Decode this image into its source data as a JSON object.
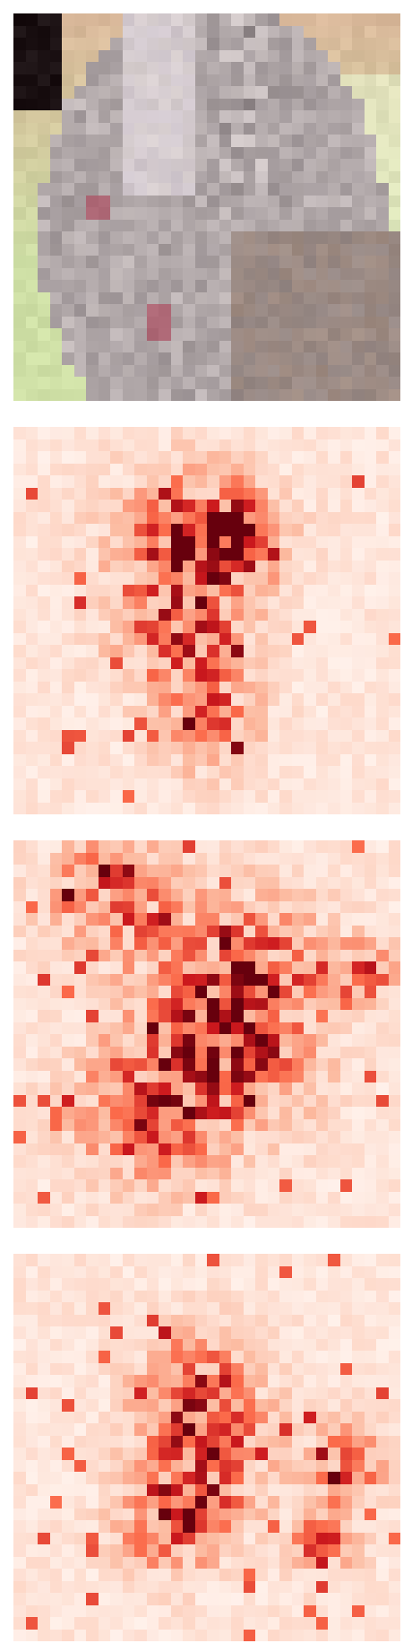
{
  "image": {
    "kind": "pixelated photo of a rabbit with three saliency heatmaps below",
    "grid_resolution": 32,
    "photo_palette": {
      "background_top": "#d9b89a",
      "fur_light": "#d8cfcf",
      "fur_shadow": "#8f8688",
      "green": "#cfe0a6",
      "dark_corner": "#1a1012",
      "eye_pink": "#b06a78"
    },
    "heatmap_colormap": {
      "name": "Reds",
      "stops": [
        "#fff5f0",
        "#fcbba1",
        "#fb6a4a",
        "#cb181d",
        "#67000d"
      ]
    }
  },
  "panels": [
    {
      "name": "photo",
      "kind": "photo"
    },
    {
      "name": "heatmap-1",
      "kind": "heatmap",
      "seed": 17,
      "hotspots": [
        [
          0.45,
          0.3,
          0.18
        ],
        [
          0.55,
          0.28,
          0.12
        ],
        [
          0.42,
          0.52,
          0.15
        ],
        [
          0.5,
          0.75,
          0.12
        ]
      ]
    },
    {
      "name": "heatmap-2",
      "kind": "heatmap",
      "seed": 43,
      "hotspots": [
        [
          0.25,
          0.15,
          0.15
        ],
        [
          0.6,
          0.35,
          0.2
        ],
        [
          0.55,
          0.55,
          0.2
        ],
        [
          0.35,
          0.7,
          0.18
        ],
        [
          0.9,
          0.35,
          0.08
        ]
      ]
    },
    {
      "name": "heatmap-3",
      "kind": "heatmap",
      "seed": 91,
      "hotspots": [
        [
          0.48,
          0.35,
          0.15
        ],
        [
          0.5,
          0.55,
          0.15
        ],
        [
          0.85,
          0.55,
          0.1
        ],
        [
          0.4,
          0.7,
          0.12
        ],
        [
          0.8,
          0.75,
          0.08
        ]
      ]
    }
  ]
}
